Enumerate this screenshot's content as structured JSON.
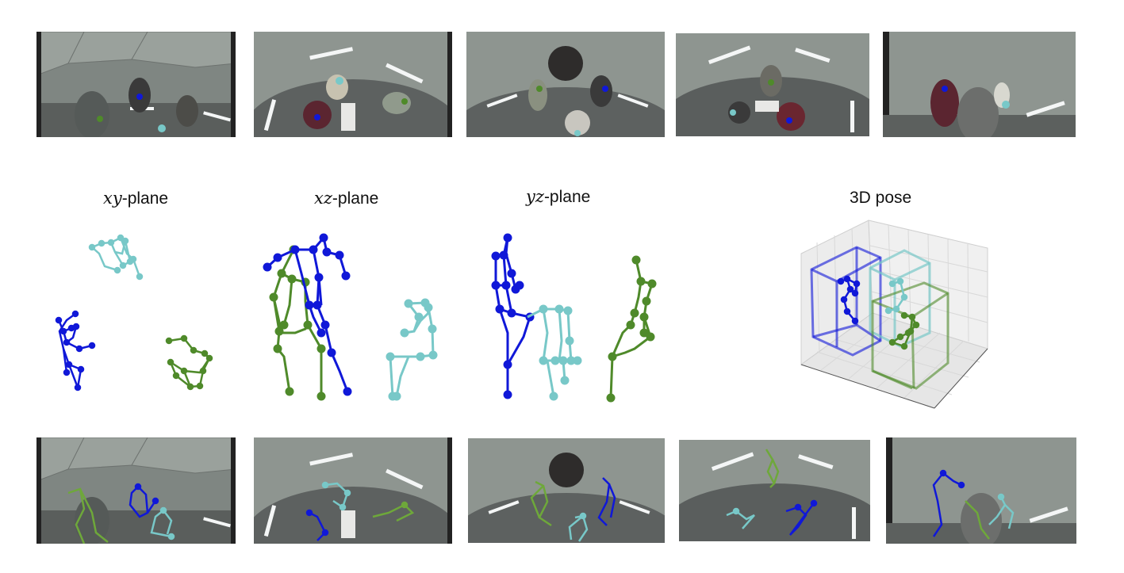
{
  "colors": {
    "blue": "#1018d8",
    "cyan": "#78c8c8",
    "green": "#4f8a2a",
    "dome": "#8c938e",
    "floor": "#55595a"
  },
  "labels": {
    "xy": {
      "var": "xy",
      "suffix": "-plane"
    },
    "xz": {
      "var": "xz",
      "suffix": "-plane"
    },
    "yz": {
      "var": "yz",
      "suffix": "-plane"
    },
    "pose3d": "3D pose"
  },
  "camera_views": {
    "top_row": [
      "view-1",
      "view-2",
      "view-3",
      "view-4",
      "view-5"
    ],
    "bottom_row": [
      "view-1-overlay",
      "view-2-overlay",
      "view-3-overlay",
      "view-4-overlay",
      "view-5-overlay"
    ]
  }
}
